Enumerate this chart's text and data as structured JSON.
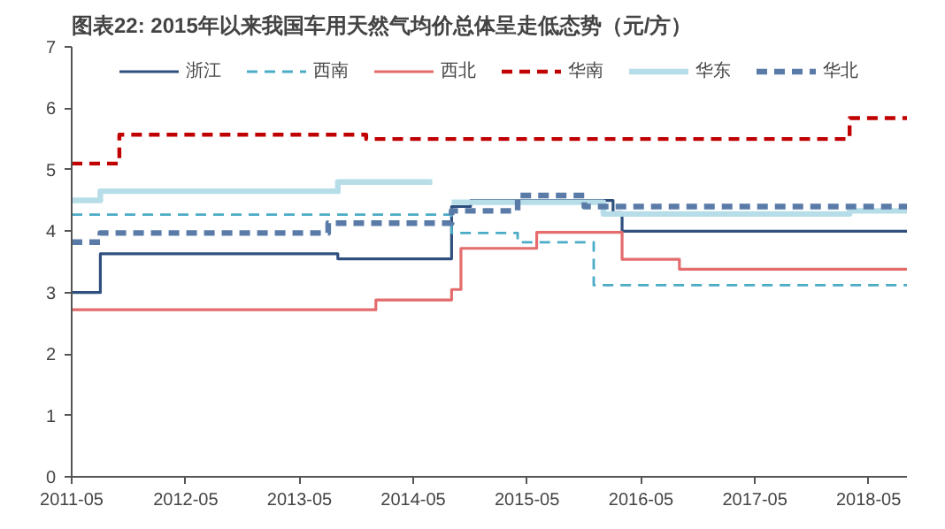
{
  "chart_data": {
    "type": "step",
    "title": "图表22:   2015年以来我国车用天然气均价总体呈走低态势（元/方）",
    "series": [
      {
        "name": "浙江",
        "color": "#2f4f7f",
        "line_style": "solid",
        "x": [
          "2011-05",
          "2011-08",
          "2013-09",
          "2014-09",
          "2014-11",
          "2016-02",
          "2016-03",
          "2018-09"
        ],
        "values": [
          3.0,
          3.63,
          3.55,
          4.4,
          4.5,
          4.3,
          4.0,
          4.0
        ]
      },
      {
        "name": "西南",
        "color": "#4bacc6",
        "line_style": "dashed",
        "x": [
          "2011-05",
          "2014-09",
          "2015-04",
          "2015-12",
          "2018-09"
        ],
        "values": [
          4.27,
          3.97,
          3.82,
          3.12,
          3.12
        ]
      },
      {
        "name": "西北",
        "color": "#e46c6c",
        "line_style": "solid",
        "x": [
          "2011-05",
          "2014-01",
          "2014-09",
          "2014-10",
          "2015-06",
          "2016-03",
          "2016-09",
          "2018-09"
        ],
        "values": [
          2.72,
          2.88,
          3.05,
          3.72,
          3.98,
          3.54,
          3.38,
          3.38
        ]
      },
      {
        "name": "华南",
        "color": "#c00000",
        "line_style": "dashed",
        "x": [
          "2011-05",
          "2011-10",
          "2013-12",
          "2018-03",
          "2018-09"
        ],
        "values": [
          5.1,
          5.57,
          5.5,
          5.84,
          5.84
        ]
      },
      {
        "name": "华东",
        "color": "#b7dee8",
        "line_style": "solid",
        "x": [
          "2011-05",
          "2011-08",
          "2013-09",
          "2014-07",
          "2014-09",
          "2016-01",
          "2018-03",
          "2018-09"
        ],
        "values": [
          4.5,
          4.65,
          4.8,
          null,
          4.47,
          4.28,
          4.33,
          4.33
        ]
      },
      {
        "name": "华北",
        "color": "#5a7ba8",
        "line_style": "dashed",
        "x": [
          "2011-05",
          "2011-08",
          "2013-08",
          "2014-09",
          "2015-04",
          "2015-11",
          "2018-09"
        ],
        "values": [
          3.82,
          3.97,
          4.13,
          4.33,
          4.58,
          4.4,
          4.4
        ]
      }
    ],
    "xlim": [
      "2011-05",
      "2018-09"
    ],
    "xticks": [
      "2011-05",
      "2012-05",
      "2013-05",
      "2014-05",
      "2015-05",
      "2016-05",
      "2017-05",
      "2018-05"
    ],
    "ylim": [
      0,
      7
    ],
    "yticks": [
      0,
      1,
      2,
      3,
      4,
      5,
      6,
      7
    ],
    "grid": false,
    "legend": "top"
  }
}
